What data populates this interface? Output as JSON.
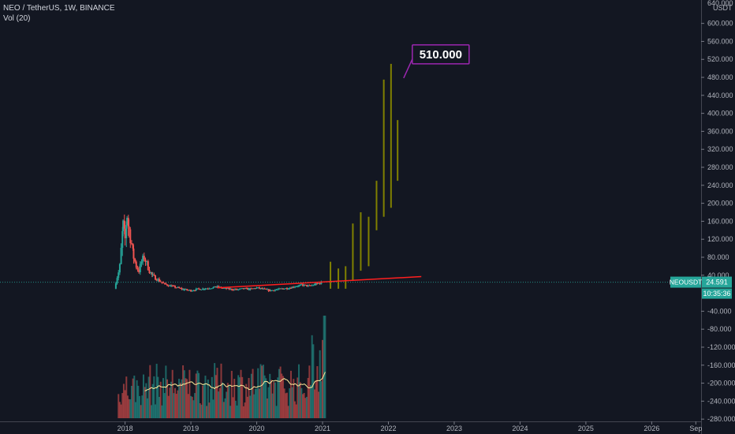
{
  "header": {
    "symbol_line": "NEO / TetherUS, 1W, BINANCE",
    "volume_line": "Vol (20)"
  },
  "price_axis": {
    "unit": "USDT",
    "top_label": "640.000"
  },
  "price_badge": {
    "symbol": "NEOUSDT",
    "price": "24.591",
    "countdown": "10:35:36"
  },
  "annotation": {
    "text": "510.000"
  },
  "colors": {
    "background": "#131722",
    "bull": "#26a69a",
    "bear": "#ef5350",
    "projection": "#808000",
    "trendline": "#ff1f1f",
    "callout": "#9c27b0",
    "volume_ma": "#ffeb99"
  },
  "chart_data": {
    "type": "candlestick",
    "title": "NEO / TetherUS, 1W, BINANCE",
    "y_unit": "USDT",
    "yticks": [
      600,
      560,
      520,
      480,
      440,
      400,
      360,
      320,
      280,
      240,
      200,
      160,
      120,
      80,
      40,
      -40,
      -80,
      -120,
      -160,
      -200,
      -240,
      -280
    ],
    "ytick_labels": [
      "600.000",
      "560.000",
      "520.000",
      "480.000",
      "440.000",
      "400.000",
      "360.000",
      "320.000",
      "280.000",
      "240.000",
      "200.000",
      "160.000",
      "120.000",
      "80.000",
      "40.000",
      "-40.000",
      "-80.000",
      "-120.000",
      "-160.000",
      "-200.000",
      "-240.000",
      "-280.000"
    ],
    "ylim": [
      -285,
      645
    ],
    "x_labels": [
      "2018",
      "2019",
      "2020",
      "2021",
      "2022",
      "2023",
      "2024",
      "2025",
      "2026",
      "Sep"
    ],
    "x_label_dates": [
      2018.0,
      2019.0,
      2020.0,
      2021.0,
      2022.0,
      2023.0,
      2024.0,
      2025.0,
      2026.0,
      2026.67
    ],
    "xlim": [
      2016.1,
      2026.75
    ],
    "price_path": [
      [
        2017.86,
        10,
        25
      ],
      [
        2017.92,
        25,
        60
      ],
      [
        2017.97,
        60,
        150
      ],
      [
        2018.0,
        150,
        120
      ],
      [
        2018.03,
        120,
        175
      ],
      [
        2018.06,
        175,
        140
      ],
      [
        2018.1,
        140,
        110
      ],
      [
        2018.13,
        110,
        80
      ],
      [
        2018.17,
        80,
        60
      ],
      [
        2018.21,
        60,
        50
      ],
      [
        2018.25,
        50,
        70
      ],
      [
        2018.29,
        70,
        80
      ],
      [
        2018.33,
        80,
        65
      ],
      [
        2018.37,
        65,
        50
      ],
      [
        2018.42,
        50,
        38
      ],
      [
        2018.5,
        38,
        30
      ],
      [
        2018.6,
        30,
        20
      ],
      [
        2018.7,
        20,
        16
      ],
      [
        2018.8,
        16,
        12
      ],
      [
        2018.9,
        12,
        8
      ],
      [
        2019.0,
        8,
        6
      ],
      [
        2019.1,
        6,
        9
      ],
      [
        2019.2,
        9,
        10
      ],
      [
        2019.3,
        10,
        12
      ],
      [
        2019.4,
        12,
        14
      ],
      [
        2019.5,
        14,
        11
      ],
      [
        2019.6,
        11,
        9
      ],
      [
        2019.7,
        9,
        8
      ],
      [
        2019.8,
        8,
        10
      ],
      [
        2019.9,
        10,
        9
      ],
      [
        2020.0,
        9,
        12
      ],
      [
        2020.1,
        12,
        9
      ],
      [
        2020.2,
        9,
        6
      ],
      [
        2020.3,
        6,
        8
      ],
      [
        2020.4,
        8,
        10
      ],
      [
        2020.5,
        10,
        12
      ],
      [
        2020.6,
        12,
        16
      ],
      [
        2020.7,
        16,
        18
      ],
      [
        2020.8,
        18,
        16
      ],
      [
        2020.9,
        16,
        20
      ],
      [
        2021.0,
        20,
        24.6
      ]
    ],
    "projection_bars": [
      {
        "x": 2021.12,
        "low": 10,
        "high": 70
      },
      {
        "x": 2021.24,
        "low": 10,
        "high": 55
      },
      {
        "x": 2021.35,
        "low": 10,
        "high": 60
      },
      {
        "x": 2021.46,
        "low": 30,
        "high": 155
      },
      {
        "x": 2021.58,
        "low": 50,
        "high": 180
      },
      {
        "x": 2021.7,
        "low": 60,
        "high": 170
      },
      {
        "x": 2021.82,
        "low": 140,
        "high": 250
      },
      {
        "x": 2021.93,
        "low": 170,
        "high": 475
      },
      {
        "x": 2022.04,
        "low": 190,
        "high": 510
      },
      {
        "x": 2022.14,
        "low": 250,
        "high": 385
      }
    ],
    "trendline": {
      "from": [
        2019.4,
        12
      ],
      "to": [
        2022.5,
        37
      ]
    },
    "last_price": 24.591,
    "volume_window": [
      2017.9,
      2021.05
    ],
    "volume_ma_period": 20
  }
}
